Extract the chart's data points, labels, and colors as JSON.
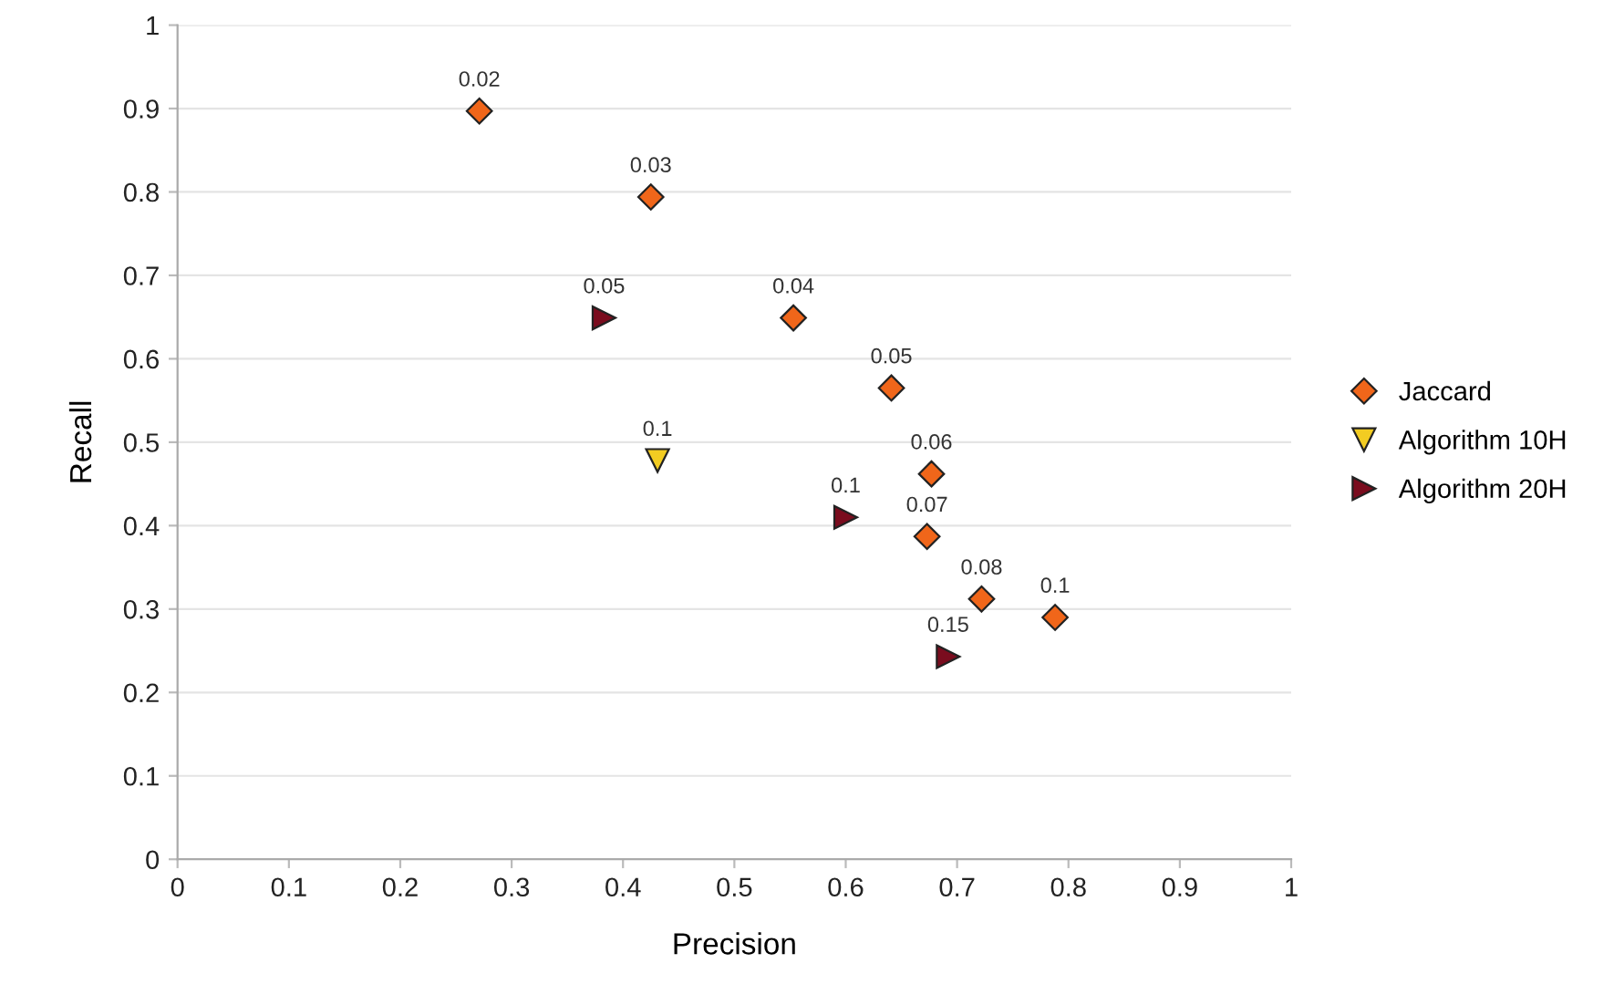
{
  "chart_data": {
    "type": "scatter",
    "xlabel": "Precision",
    "ylabel": "Recall",
    "xlim": [
      0,
      1
    ],
    "ylim": [
      0,
      1
    ],
    "xticks": [
      0,
      0.1,
      0.2,
      0.3,
      0.4,
      0.5,
      0.6,
      0.7,
      0.8,
      0.9,
      1
    ],
    "yticks": [
      0,
      0.1,
      0.2,
      0.3,
      0.4,
      0.5,
      0.6,
      0.7,
      0.8,
      0.9,
      1
    ],
    "grid": "y",
    "legend": "right",
    "series": [
      {
        "name": "Jaccard",
        "color": "#f0661a",
        "marker": "diamond",
        "x": [
          0.271,
          0.425,
          0.553,
          0.641,
          0.677,
          0.673,
          0.722,
          0.788
        ],
        "values": [
          0.897,
          0.794,
          0.649,
          0.565,
          0.462,
          0.387,
          0.312,
          0.29
        ]
      },
      {
        "name": "Algorithm 10H",
        "color": "#f2cc22",
        "marker": "triangle-down",
        "x": [
          0.431
        ],
        "values": [
          0.478
        ]
      },
      {
        "name": "Algorithm 20H",
        "color": "#7a0c1e",
        "marker": "triangle-right",
        "x": [
          0.383,
          0.6,
          0.692
        ],
        "values": [
          0.649,
          0.41,
          0.243
        ]
      }
    ],
    "annotations": [
      {
        "text": "0.02",
        "x": 0.271,
        "y": 0.897
      },
      {
        "text": "0.03",
        "x": 0.425,
        "y": 0.794
      },
      {
        "text": "0.04",
        "x": 0.553,
        "y": 0.649
      },
      {
        "text": "0.05",
        "x": 0.641,
        "y": 0.565
      },
      {
        "text": "0.06",
        "x": 0.677,
        "y": 0.462
      },
      {
        "text": "0.07",
        "x": 0.673,
        "y": 0.387
      },
      {
        "text": "0.08",
        "x": 0.722,
        "y": 0.312
      },
      {
        "text": "0.1",
        "x": 0.788,
        "y": 0.29
      },
      {
        "text": "0.1",
        "x": 0.431,
        "y": 0.478
      },
      {
        "text": "0.05",
        "x": 0.383,
        "y": 0.649
      },
      {
        "text": "0.1",
        "x": 0.6,
        "y": 0.41
      },
      {
        "text": "0.15",
        "x": 0.692,
        "y": 0.243
      }
    ]
  }
}
